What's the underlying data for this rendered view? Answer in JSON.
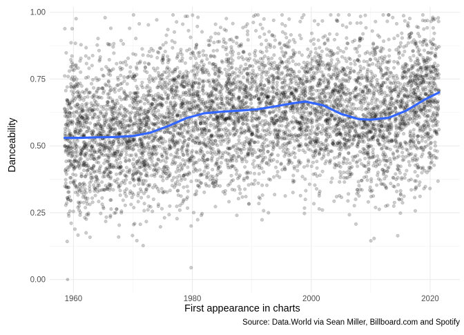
{
  "chart_data": {
    "type": "scatter",
    "title": "",
    "xlabel": "First appearance in charts",
    "ylabel": "Danceability",
    "caption": "Source: Data.World via Sean Miller, Billboard.com and Spotify",
    "xlim": [
      1956.0,
      2025.0
    ],
    "ylim": [
      -0.05,
      1.02
    ],
    "x_ticks": [
      1960,
      1980,
      2000,
      2020
    ],
    "y_ticks": [
      0.0,
      0.25,
      0.5,
      0.75,
      1.0
    ],
    "y_tick_labels": [
      "0.00",
      "0.25",
      "0.50",
      "0.75",
      "1.00"
    ],
    "x_minor_ticks": [
      1970,
      1990,
      2010
    ],
    "y_minor_ticks": [
      0.125,
      0.375,
      0.625,
      0.875
    ],
    "grid": true,
    "legend": "none",
    "point_color": "#000000",
    "point_alpha": 0.2,
    "approx_point_count": 6000,
    "x_range_of_points": [
      1958.5,
      2021.5
    ],
    "density_profile": [
      {
        "x": 1959,
        "mean": 0.53,
        "sd": 0.15
      },
      {
        "x": 1965,
        "mean": 0.53,
        "sd": 0.15
      },
      {
        "x": 1970,
        "mean": 0.54,
        "sd": 0.15
      },
      {
        "x": 1975,
        "mean": 0.57,
        "sd": 0.15
      },
      {
        "x": 1980,
        "mean": 0.61,
        "sd": 0.15
      },
      {
        "x": 1985,
        "mean": 0.63,
        "sd": 0.14
      },
      {
        "x": 1990,
        "mean": 0.64,
        "sd": 0.14
      },
      {
        "x": 1995,
        "mean": 0.65,
        "sd": 0.14
      },
      {
        "x": 2000,
        "mean": 0.66,
        "sd": 0.14
      },
      {
        "x": 2005,
        "mean": 0.63,
        "sd": 0.15
      },
      {
        "x": 2010,
        "mean": 0.6,
        "sd": 0.15
      },
      {
        "x": 2015,
        "mean": 0.63,
        "sd": 0.15
      },
      {
        "x": 2020,
        "mean": 0.68,
        "sd": 0.15
      }
    ],
    "series": [
      {
        "type": "smooth",
        "color": "#3366ff",
        "x": [
          1958.5,
          1961,
          1964,
          1967,
          1970,
          1973,
          1976,
          1979,
          1982,
          1985,
          1988,
          1991,
          1994,
          1997,
          1999,
          2002,
          2005,
          2008,
          2010,
          2013,
          2016,
          2019,
          2021.5
        ],
        "y": [
          0.53,
          0.53,
          0.532,
          0.533,
          0.537,
          0.55,
          0.575,
          0.604,
          0.622,
          0.628,
          0.632,
          0.637,
          0.648,
          0.66,
          0.666,
          0.652,
          0.62,
          0.6,
          0.598,
          0.605,
          0.632,
          0.672,
          0.7
        ]
      }
    ]
  }
}
